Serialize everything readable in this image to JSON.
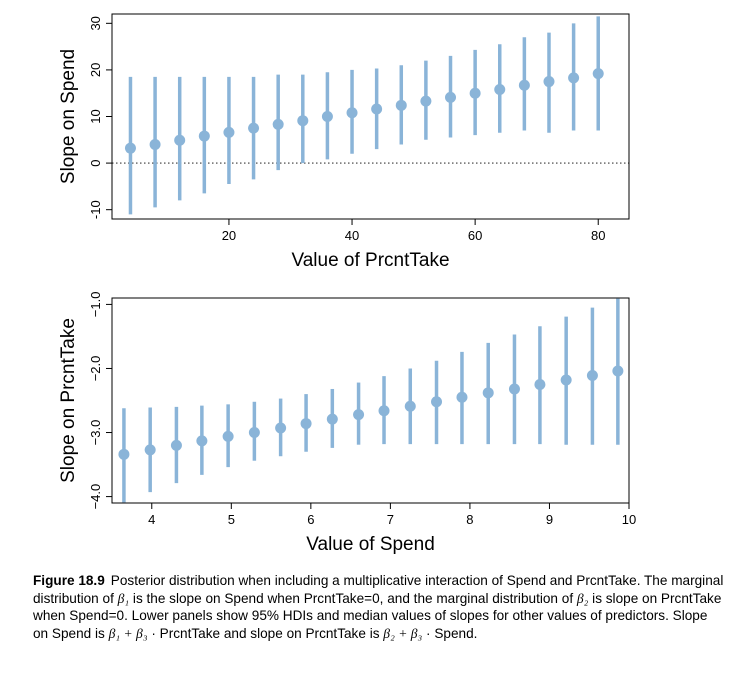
{
  "chart_data": [
    {
      "type": "scatter",
      "title": "",
      "xlabel": "Value of PrcntTake",
      "ylabel": "Slope on Spend",
      "xlim": [
        1,
        85
      ],
      "ylim": [
        -12,
        32
      ],
      "xticks": [
        20,
        40,
        60,
        80
      ],
      "yticks": [
        -10,
        0,
        10,
        20,
        30
      ],
      "reference_line": 0,
      "series": [
        {
          "x": [
            4,
            8,
            12,
            16,
            20,
            24,
            28,
            32,
            36,
            40,
            44,
            48,
            52,
            56,
            60,
            64,
            68,
            72,
            76,
            80
          ],
          "median": [
            3.2,
            4.0,
            4.9,
            5.8,
            6.6,
            7.5,
            8.3,
            9.1,
            10.0,
            10.8,
            11.6,
            12.4,
            13.3,
            14.1,
            15.0,
            15.8,
            16.7,
            17.5,
            18.3,
            19.2
          ],
          "hdi_low": [
            -11.0,
            -9.5,
            -8.0,
            -6.5,
            -4.5,
            -3.5,
            -1.5,
            0.0,
            0.8,
            2.0,
            3.0,
            4.0,
            5.0,
            5.5,
            6.0,
            6.5,
            7.0,
            6.5,
            7.0,
            7.0
          ],
          "hdi_high": [
            18.5,
            18.5,
            18.5,
            18.5,
            18.5,
            18.5,
            19.0,
            19.0,
            19.5,
            20.0,
            20.3,
            21.0,
            22.0,
            23.0,
            24.3,
            25.5,
            27.0,
            28.0,
            30.0,
            31.5
          ]
        }
      ],
      "marker_color": "#8ab4d8"
    },
    {
      "type": "scatter",
      "title": "",
      "xlabel": "Value of Spend",
      "ylabel": "Slope on PrcntTake",
      "xlim": [
        3.5,
        10.0
      ],
      "ylim": [
        -4.1,
        -0.9
      ],
      "xticks": [
        4,
        5,
        6,
        7,
        8,
        9,
        10
      ],
      "yticks": [
        -4.0,
        -3.0,
        -2.0,
        -1.0
      ],
      "ytick_labels": [
        "−4.0",
        "−3.0",
        "−2.0",
        "−1.0"
      ],
      "series": [
        {
          "x": [
            3.65,
            3.98,
            4.31,
            4.63,
            4.96,
            5.29,
            5.62,
            5.94,
            6.27,
            6.6,
            6.92,
            7.25,
            7.58,
            7.9,
            8.23,
            8.56,
            8.88,
            9.21,
            9.54,
            9.86
          ],
          "median": [
            -3.34,
            -3.27,
            -3.2,
            -3.13,
            -3.06,
            -3.0,
            -2.93,
            -2.86,
            -2.79,
            -2.72,
            -2.66,
            -2.59,
            -2.52,
            -2.45,
            -2.38,
            -2.32,
            -2.25,
            -2.18,
            -2.11,
            -2.04
          ],
          "hdi_low": [
            -4.09,
            -3.93,
            -3.79,
            -3.66,
            -3.54,
            -3.44,
            -3.37,
            -3.3,
            -3.24,
            -3.19,
            -3.18,
            -3.18,
            -3.18,
            -3.18,
            -3.18,
            -3.18,
            -3.18,
            -3.19,
            -3.19,
            -3.19
          ],
          "hdi_high": [
            -2.62,
            -2.61,
            -2.6,
            -2.58,
            -2.56,
            -2.52,
            -2.47,
            -2.4,
            -2.32,
            -2.22,
            -2.12,
            -2.0,
            -1.88,
            -1.74,
            -1.6,
            -1.47,
            -1.34,
            -1.19,
            -1.05,
            -0.91
          ]
        }
      ],
      "marker_color": "#8ab4d8"
    }
  ],
  "caption": {
    "label": "Figure 18.9",
    "parts": [
      "Posterior distribution when including a multiplicative interaction of Spend and PrcntTake. The marginal distribution of ",
      "β₁",
      " is the slope on Spend when PrcntTake=0, and the marginal distribution of ",
      "β₂",
      " is slope on PrcntTake when Spend=0. Lower panels show 95% HDIs and median values of slopes for other values of predictors. Slope on Spend is ",
      "β₁ + β₃",
      " · PrcntTake and slope on PrcntTake is ",
      "β₂ + β₃",
      " · Spend."
    ]
  }
}
